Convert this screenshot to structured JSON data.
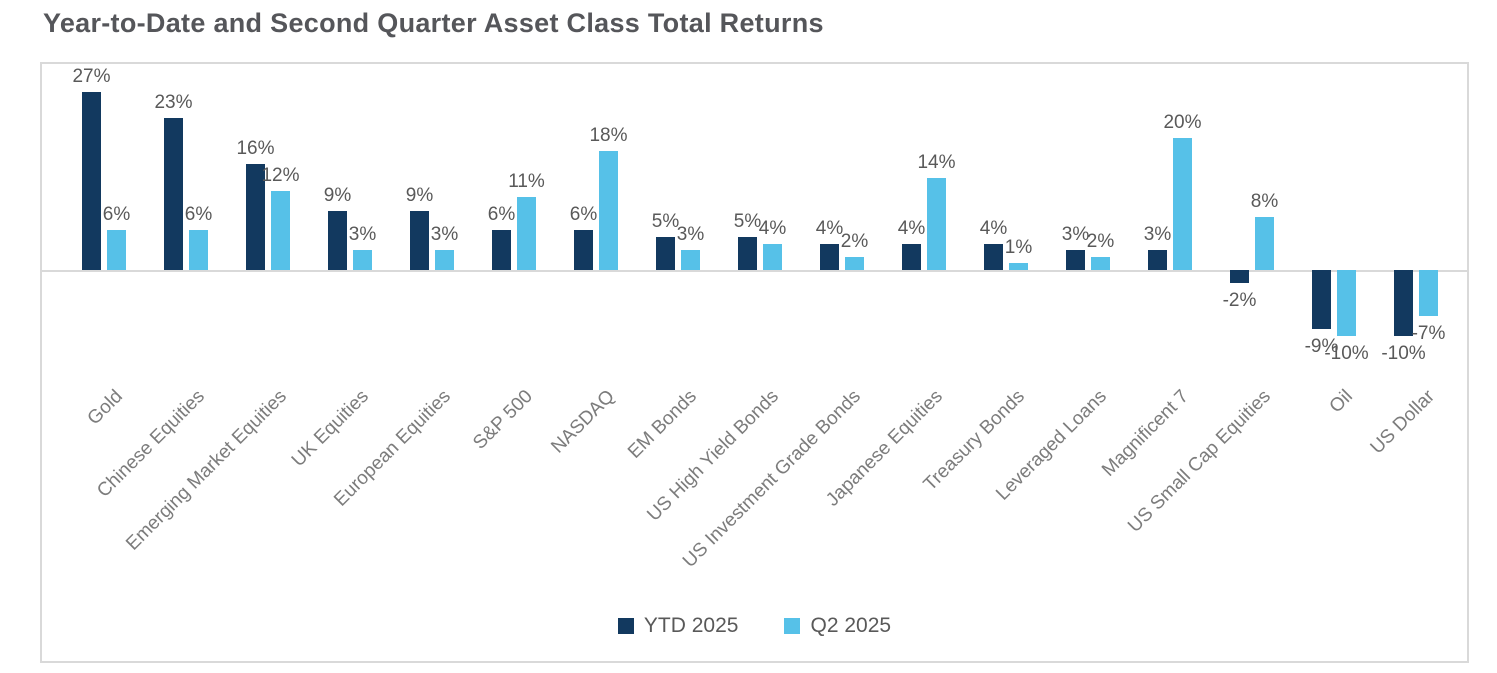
{
  "title": "Year-to-Date and Second Quarter Asset Class Total Returns",
  "colors": {
    "ytd_bar": "#12395F",
    "q2_bar": "#56C1E8",
    "title_text": "#55565A",
    "value_label_text": "#595959",
    "axis_label_text": "#7C7C7C",
    "frame_border": "#D9D9D9",
    "axis_line": "#D9D9D9",
    "background": "#FFFFFF"
  },
  "legend": {
    "items": [
      {
        "label": "YTD 2025",
        "color": "#12395F"
      },
      {
        "label": "Q2 2025",
        "color": "#56C1E8"
      }
    ]
  },
  "chart_data": {
    "type": "bar",
    "title": "Year-to-Date and Second Quarter Asset Class Total Returns",
    "categories": [
      "Gold",
      "Chinese Equities",
      "Emerging Market Equities",
      "UK Equities",
      "European Equities",
      "S&P 500",
      "NASDAQ",
      "EM Bonds",
      "US High Yield Bonds",
      "US Investment Grade Bonds",
      "Japanese Equities",
      "Treasury Bonds",
      "Leveraged Loans",
      "Magnificent 7",
      "US Small Cap Equities",
      "Oil",
      "US Dollar"
    ],
    "series": [
      {
        "name": "YTD 2025",
        "color": "#12395F",
        "values": [
          27,
          23,
          16,
          9,
          9,
          6,
          6,
          5,
          5,
          4,
          4,
          4,
          3,
          3,
          -2,
          -9,
          -10
        ]
      },
      {
        "name": "Q2 2025",
        "color": "#56C1E8",
        "values": [
          6,
          6,
          12,
          3,
          3,
          11,
          18,
          3,
          4,
          2,
          14,
          1,
          2,
          20,
          8,
          -10,
          -7
        ]
      }
    ],
    "value_label_suffix": "%",
    "xlabel": "",
    "ylabel": "",
    "ylim": [
      -14,
      30
    ],
    "grid": false,
    "y_axis_visible": false,
    "legend_position": "bottom-center",
    "x_label_rotation_deg": 45
  }
}
